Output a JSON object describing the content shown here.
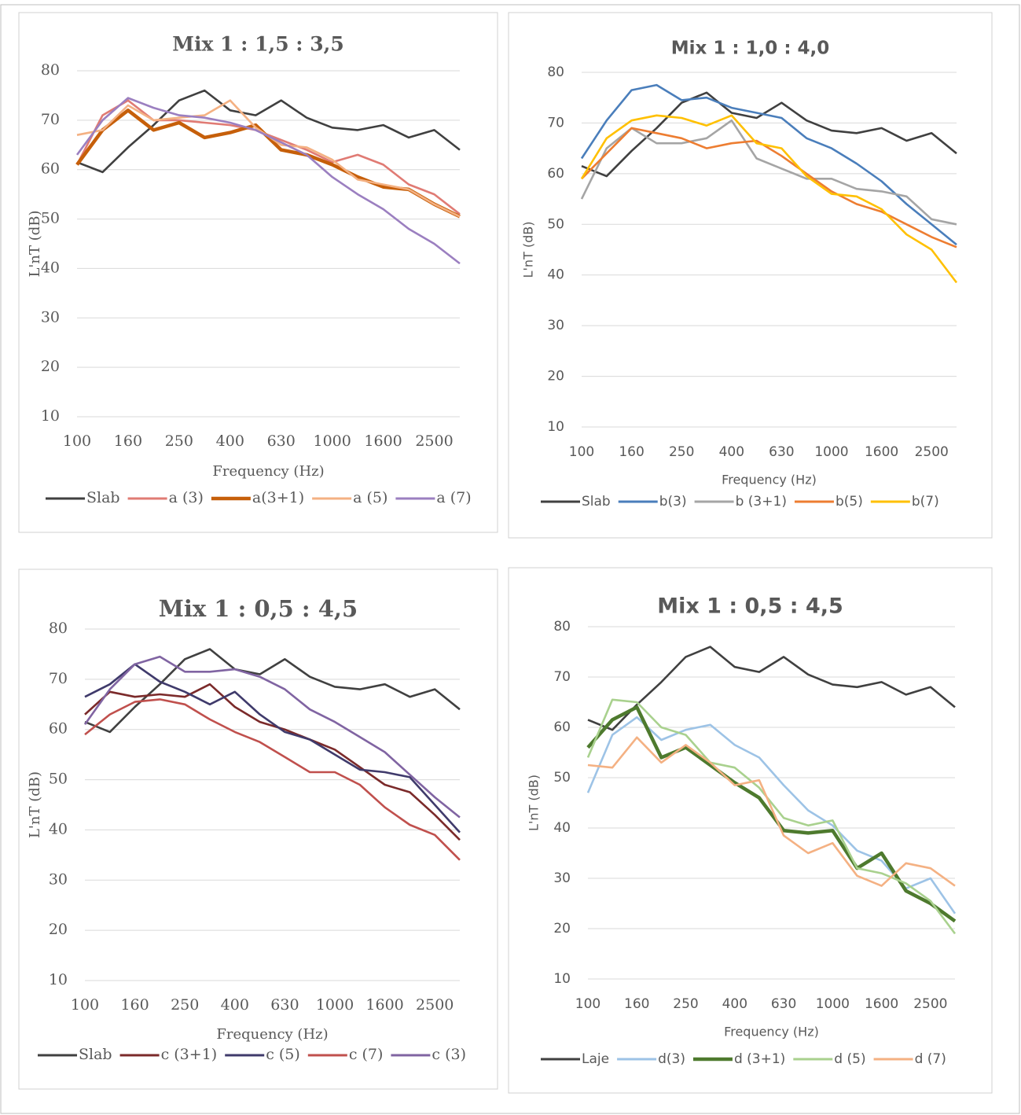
{
  "chart_data": [
    {
      "type": "line",
      "title": "Mix 1 : 1,5 : 3,5",
      "x_label": "Frequency (Hz)",
      "y_label": "L'nT (dB)",
      "categories": [
        "100",
        null,
        "160",
        null,
        "250",
        null,
        "400",
        null,
        "630",
        null,
        "1000",
        null,
        "1600",
        null,
        "2500",
        null
      ],
      "ylim": [
        10,
        80
      ],
      "yticks": [
        10,
        20,
        30,
        40,
        50,
        60,
        70,
        80
      ],
      "grid": true,
      "legend": "bottom",
      "series": [
        {
          "name": "Slab",
          "color": "#404040",
          "values": [
            61.5,
            59.5,
            64.5,
            69,
            74,
            76,
            72,
            71,
            74,
            70.5,
            68.5,
            68,
            69,
            66.5,
            68,
            64
          ]
        },
        {
          "name": "a (3)",
          "color": "#e07b74",
          "values": [
            61,
            71,
            74,
            70,
            70,
            69.5,
            69,
            68,
            66,
            64,
            61.5,
            63,
            61,
            57,
            55,
            51
          ]
        },
        {
          "name": "a(3+1)",
          "color": "#c65f0a",
          "values": [
            61,
            68,
            72,
            68,
            69.5,
            66.5,
            67.5,
            69,
            64,
            63,
            61,
            58.5,
            56.5,
            56,
            53,
            50.5
          ]
        },
        {
          "name": "a (5)",
          "color": "#f4b183",
          "values": [
            67,
            68,
            73,
            70,
            70.5,
            71,
            74,
            68.5,
            65,
            64.5,
            62,
            58,
            57,
            56,
            53,
            50.5
          ]
        },
        {
          "name": "a (7)",
          "color": "#9b7fc0",
          "values": [
            63,
            70,
            74.5,
            72.5,
            71,
            70.5,
            69.5,
            68,
            65.5,
            63,
            58.5,
            55,
            52,
            48,
            45,
            41
          ]
        }
      ]
    },
    {
      "type": "line",
      "title": "Mix 1 : 1,0 : 4,0",
      "x_label": "Frequency (Hz)",
      "y_label": "L'nT (dB)",
      "categories": [
        "100",
        null,
        "160",
        null,
        "250",
        null,
        "400",
        null,
        "630",
        null,
        "1000",
        null,
        "1600",
        null,
        "2500",
        null
      ],
      "ylim": [
        10,
        80
      ],
      "yticks": [
        10,
        20,
        30,
        40,
        50,
        60,
        70,
        80
      ],
      "grid": true,
      "legend": "bottom",
      "series": [
        {
          "name": "Slab",
          "color": "#404040",
          "values": [
            61.5,
            59.5,
            64.5,
            69,
            74,
            76,
            72,
            71,
            74,
            70.5,
            68.5,
            68,
            69,
            66.5,
            68,
            64
          ]
        },
        {
          "name": "b(3)",
          "color": "#4a7ebb",
          "values": [
            63,
            70.5,
            76.5,
            77.5,
            74.5,
            75,
            73,
            72,
            71,
            67,
            65,
            62,
            58.5,
            54,
            50,
            46
          ]
        },
        {
          "name": "b (3+1)",
          "color": "#a5a5a5",
          "values": [
            55,
            65,
            69,
            66,
            66,
            67,
            70.5,
            63,
            61,
            59,
            59,
            57,
            56.5,
            55.5,
            51,
            50
          ]
        },
        {
          "name": "b(5)",
          "color": "#ed7d31",
          "values": [
            59,
            64,
            69,
            68,
            67,
            65,
            66,
            66.5,
            63.5,
            60,
            56.5,
            54,
            52.5,
            50,
            47.5,
            45.5
          ]
        },
        {
          "name": "b(7)",
          "color": "#ffc000",
          "values": [
            59,
            67,
            70.5,
            71.5,
            71,
            69.5,
            71.5,
            66,
            65,
            59.5,
            56,
            55.5,
            53,
            48,
            45,
            38.5
          ]
        }
      ]
    },
    {
      "type": "line",
      "title": "Mix 1 : 0,5 : 4,5",
      "x_label": "Frequency (Hz)",
      "y_label": "L'nT (dB)",
      "categories": [
        "100",
        null,
        "160",
        null,
        "250",
        null,
        "400",
        null,
        "630",
        null,
        "1000",
        null,
        "1600",
        null,
        "2500",
        null
      ],
      "ylim": [
        10,
        80
      ],
      "yticks": [
        10,
        20,
        30,
        40,
        50,
        60,
        70,
        80
      ],
      "grid": true,
      "legend": "bottom",
      "series": [
        {
          "name": "Slab",
          "color": "#404040",
          "values": [
            61.5,
            59.5,
            64.5,
            69,
            74,
            76,
            72,
            71,
            74,
            70.5,
            68.5,
            68,
            69,
            66.5,
            68,
            64
          ]
        },
        {
          "name": "c (3+1)",
          "color": "#7b2a2a",
          "values": [
            63,
            67.5,
            66.5,
            67,
            66.5,
            69,
            64.5,
            61.5,
            60,
            58,
            56,
            52.5,
            49,
            47.5,
            43,
            38
          ]
        },
        {
          "name": "c (5)",
          "color": "#3f3a6b",
          "values": [
            66.5,
            69,
            73,
            69.5,
            67.5,
            65,
            67.5,
            63,
            59.5,
            58,
            55,
            52,
            51.5,
            50.5,
            45,
            39.5
          ]
        },
        {
          "name": "c (7)",
          "color": "#c0504d",
          "values": [
            59,
            63,
            65.5,
            66,
            65,
            62,
            59.5,
            57.5,
            54.5,
            51.5,
            51.5,
            49,
            44.5,
            41,
            39,
            34
          ]
        },
        {
          "name": "c (3)",
          "color": "#8064a2",
          "values": [
            61,
            68,
            73,
            74.5,
            71.5,
            71.5,
            72,
            70.5,
            68,
            64,
            61.5,
            58.5,
            55.5,
            51,
            46.5,
            42.5
          ]
        }
      ]
    },
    {
      "type": "line",
      "title": "Mix 1 : 0,5 : 4,5",
      "x_label": "Frequency (Hz)",
      "y_label": "L'nT (dB)",
      "categories": [
        "100",
        null,
        "160",
        null,
        "250",
        null,
        "400",
        null,
        "630",
        null,
        "1000",
        null,
        "1600",
        null,
        "2500",
        null
      ],
      "ylim": [
        10,
        80
      ],
      "yticks": [
        10,
        20,
        30,
        40,
        50,
        60,
        70,
        80
      ],
      "grid": true,
      "legend": "bottom",
      "series": [
        {
          "name": "Laje",
          "color": "#404040",
          "values": [
            61.5,
            59.5,
            64.5,
            69,
            74,
            76,
            72,
            71,
            74,
            70.5,
            68.5,
            68,
            69,
            66.5,
            68,
            64
          ]
        },
        {
          "name": "d(3)",
          "color": "#9dc3e6",
          "values": [
            47,
            58.5,
            62,
            57.5,
            59.5,
            60.5,
            56.5,
            54,
            48.5,
            43.5,
            40.5,
            35.5,
            33.5,
            28,
            30,
            23
          ]
        },
        {
          "name": "d (3+1)",
          "color": "#4e7a2e",
          "values": [
            56,
            61.5,
            64,
            54,
            56,
            52.5,
            49,
            46,
            39.5,
            39,
            39.5,
            32,
            35,
            27.5,
            25,
            21.5
          ]
        },
        {
          "name": "d (5)",
          "color": "#a9d18e",
          "values": [
            54,
            65.5,
            65,
            60,
            58.5,
            53,
            52,
            48,
            42,
            40.5,
            41.5,
            32,
            31,
            29,
            25.5,
            19
          ]
        },
        {
          "name": "d (7)",
          "color": "#f4b183",
          "values": [
            52.5,
            52,
            58,
            53,
            56.5,
            53,
            48.5,
            49.5,
            38.5,
            35,
            37,
            30.5,
            28.5,
            33,
            32,
            28.5
          ]
        }
      ]
    }
  ]
}
